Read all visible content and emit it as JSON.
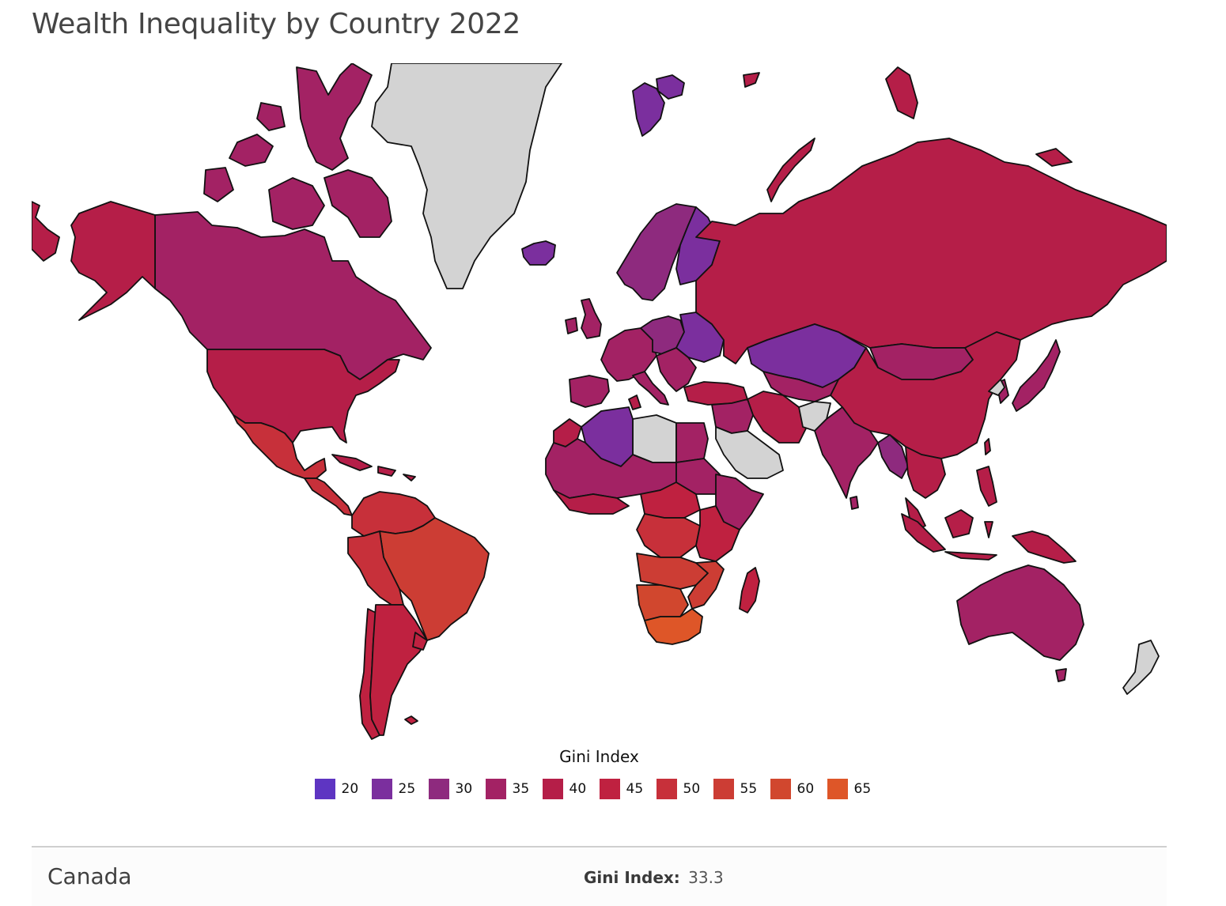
{
  "title": "Wealth Inequality by Country 2022",
  "legend": {
    "title": "Gini Index",
    "items": [
      {
        "label": "20",
        "color": "#5e35c2"
      },
      {
        "label": "25",
        "color": "#7b2f9e"
      },
      {
        "label": "30",
        "color": "#8e2a7e"
      },
      {
        "label": "35",
        "color": "#a32264"
      },
      {
        "label": "40",
        "color": "#b51e48"
      },
      {
        "label": "45",
        "color": "#bf2140"
      },
      {
        "label": "50",
        "color": "#c7303a"
      },
      {
        "label": "55",
        "color": "#cc3d34"
      },
      {
        "label": "60",
        "color": "#d1472e"
      },
      {
        "label": "65",
        "color": "#de5628"
      }
    ]
  },
  "no_data_color": "#d3d3d3",
  "ocean_color": "#ffffff",
  "info": {
    "country": "Canada",
    "stat_label": "Gini Index:",
    "stat_value": "33.3"
  },
  "map_data": {
    "type": "choropleth",
    "metric": "Gini Index",
    "projection": "mercator",
    "regions": [
      {
        "name": "Canada",
        "value": 33.3,
        "color": "#a32264"
      },
      {
        "name": "Arctic islands",
        "color": "#a32264"
      },
      {
        "name": "United States",
        "color": "#b51e48"
      },
      {
        "name": "Alaska",
        "color": "#b51e48"
      },
      {
        "name": "Mexico",
        "color": "#c7303a"
      },
      {
        "name": "Central America",
        "color": "#c7303a"
      },
      {
        "name": "Caribbean",
        "color": "#b51e48"
      },
      {
        "name": "Greenland",
        "color": "#d3d3d3"
      },
      {
        "name": "Iceland",
        "color": "#7b2f9e"
      },
      {
        "name": "Svalbard",
        "color": "#7b2f9e"
      },
      {
        "name": "Colombia / Venezuela",
        "color": "#c7303a"
      },
      {
        "name": "Brazil",
        "color": "#cc3d34"
      },
      {
        "name": "Peru / Bolivia",
        "color": "#c7303a"
      },
      {
        "name": "Chile",
        "color": "#bf2140"
      },
      {
        "name": "Argentina",
        "color": "#bf2140"
      },
      {
        "name": "Uruguay",
        "color": "#bf2140"
      },
      {
        "name": "Falklands",
        "color": "#bf2140"
      },
      {
        "name": "Scandinavia",
        "color": "#8e2a7e"
      },
      {
        "name": "Finland",
        "color": "#7b2f9e"
      },
      {
        "name": "Western Europe",
        "color": "#a32264"
      },
      {
        "name": "Iberia",
        "color": "#a32264"
      },
      {
        "name": "United Kingdom",
        "color": "#a32264"
      },
      {
        "name": "Ireland",
        "color": "#a32264"
      },
      {
        "name": "Italy",
        "color": "#a32264"
      },
      {
        "name": "Central Europe",
        "color": "#8e2a7e"
      },
      {
        "name": "Ukraine / Belarus",
        "color": "#7b2f9e"
      },
      {
        "name": "Balkans",
        "color": "#a32264"
      },
      {
        "name": "Turkey",
        "color": "#b51e48"
      },
      {
        "name": "Russia",
        "color": "#b51e48"
      },
      {
        "name": "Novaya Zemlya",
        "color": "#b51e48"
      },
      {
        "name": "Russian Arctic islands",
        "color": "#b51e48"
      },
      {
        "name": "Kazakhstan",
        "color": "#7b2f9e"
      },
      {
        "name": "Mongolia",
        "color": "#a32264"
      },
      {
        "name": "China",
        "color": "#b51e48"
      },
      {
        "name": "Central Asia",
        "color": "#a32264"
      },
      {
        "name": "Iran",
        "color": "#b51e48"
      },
      {
        "name": "Iraq / Syria / Jordan",
        "color": "#a32264"
      },
      {
        "name": "Afghanistan",
        "color": "#d3d3d3"
      },
      {
        "name": "Arabian Peninsula",
        "color": "#d3d3d3"
      },
      {
        "name": "Libya",
        "color": "#d3d3d3"
      },
      {
        "name": "Algeria",
        "color": "#7b2f9e"
      },
      {
        "name": "Morocco / Tunisia",
        "color": "#b51e48"
      },
      {
        "name": "Egypt",
        "color": "#a32264"
      },
      {
        "name": "Pakistan / India",
        "color": "#a32264"
      },
      {
        "name": "Sri Lanka",
        "color": "#a32264"
      },
      {
        "name": "Myanmar",
        "color": "#8e2a7e"
      },
      {
        "name": "Southeast Asia",
        "color": "#b51e48"
      },
      {
        "name": "Korea / Japan",
        "color": "#a32264"
      },
      {
        "name": "North Korea",
        "color": "#d3d3d3"
      },
      {
        "name": "Taiwan / Philippines",
        "color": "#b51e48"
      },
      {
        "name": "Indonesia",
        "color": "#b51e48"
      },
      {
        "name": "Papua New Guinea",
        "color": "#b51e48"
      },
      {
        "name": "Australia",
        "color": "#a32264"
      },
      {
        "name": "Tasmania",
        "color": "#a32264"
      },
      {
        "name": "New Zealand",
        "color": "#d3d3d3"
      },
      {
        "name": "Sahel / West Africa",
        "color": "#a32264"
      },
      {
        "name": "Gulf of Guinea",
        "color": "#b51e48"
      },
      {
        "name": "Central Africa",
        "color": "#bf2140"
      },
      {
        "name": "Sudan",
        "color": "#a32264"
      },
      {
        "name": "Ethiopia / Somalia",
        "color": "#a32264"
      },
      {
        "name": "Congo basin",
        "color": "#c7303a"
      },
      {
        "name": "East Africa",
        "color": "#bf2140"
      },
      {
        "name": "Angola / Zambia",
        "color": "#cc3d34"
      },
      {
        "name": "Namibia / Botswana",
        "color": "#d1472e"
      },
      {
        "name": "South Africa",
        "color": "#de5628"
      },
      {
        "name": "Mozambique",
        "color": "#cc3d34"
      },
      {
        "name": "Madagascar",
        "color": "#bf2140"
      }
    ]
  }
}
